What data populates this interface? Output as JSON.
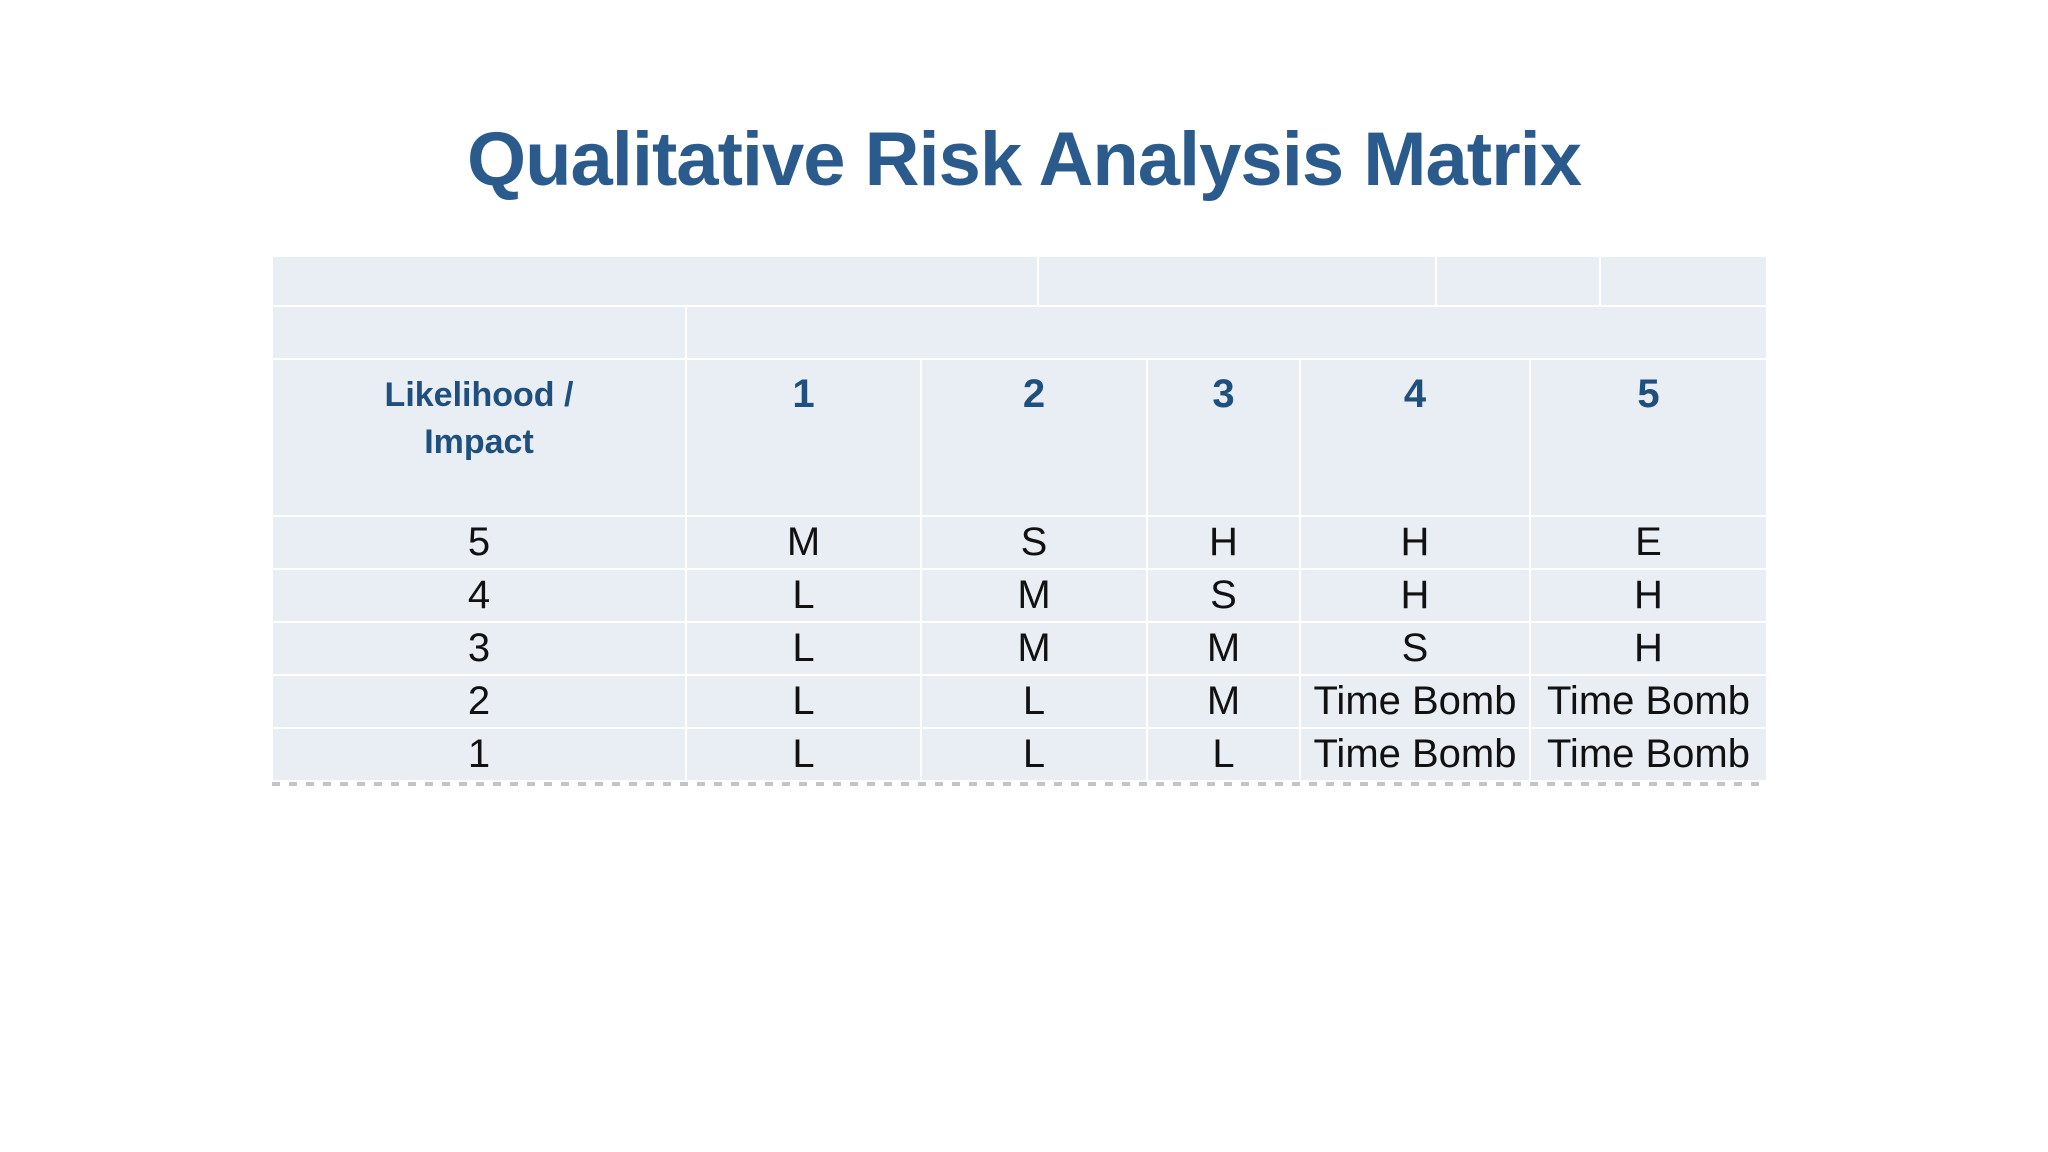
{
  "slide": {
    "title": "Qualitative Risk Analysis Matrix"
  },
  "colors": {
    "title-blue": "#2B5B8C",
    "header-blue": "#1F4F7C",
    "cell-fill": "#E9EDF4",
    "grid-line": "#FFFFFF",
    "data-text": "#111111",
    "bottom-edge": "#8B95A5"
  },
  "table": {
    "corner_header": "Likelihood /\nImpact",
    "impact_levels": [
      "1",
      "2",
      "3",
      "4",
      "5"
    ],
    "rows": [
      {
        "likelihood": "5",
        "values": [
          "M",
          "S",
          "H",
          "H",
          "E"
        ]
      },
      {
        "likelihood": "4",
        "values": [
          "L",
          "M",
          "S",
          "H",
          "H"
        ]
      },
      {
        "likelihood": "3",
        "values": [
          "L",
          "M",
          "M",
          "S",
          "H"
        ]
      },
      {
        "likelihood": "2",
        "values": [
          "L",
          "L",
          "M",
          "Time Bomb",
          "Time Bomb"
        ]
      },
      {
        "likelihood": "1",
        "values": [
          "L",
          "L",
          "L",
          "Time Bomb",
          "Time Bomb"
        ]
      }
    ]
  }
}
